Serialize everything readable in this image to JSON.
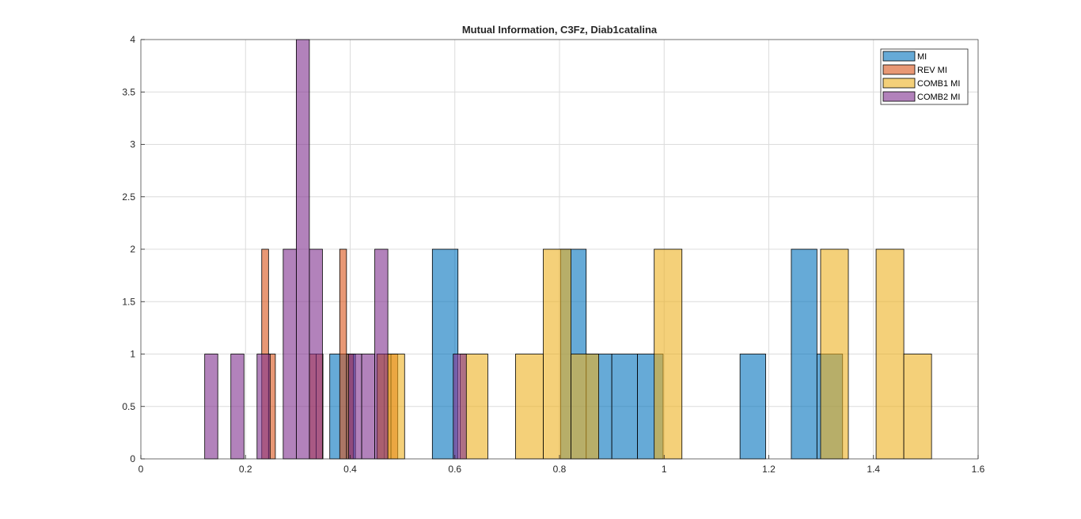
{
  "chart_data": {
    "type": "histogram",
    "title": "Mutual Information, C3Fz, Diab1catalina",
    "xlabel": "",
    "ylabel": "",
    "xlim": [
      0,
      1.6
    ],
    "ylim": [
      0,
      4
    ],
    "xticks": [
      "0",
      "0.2",
      "0.4",
      "0.6",
      "0.8",
      "1",
      "1.2",
      "1.4",
      "1.6"
    ],
    "yticks": [
      "0",
      "0.5",
      "1",
      "1.5",
      "2",
      "2.5",
      "3",
      "3.5",
      "4"
    ],
    "grid": true,
    "legend_position": "top-right",
    "series": [
      {
        "name": "MI",
        "color": "#0072BD",
        "bins": [
          {
            "x0": 0.361,
            "x1": 0.41,
            "count": 1
          },
          {
            "x0": 0.557,
            "x1": 0.606,
            "count": 2
          },
          {
            "x0": 0.802,
            "x1": 0.851,
            "count": 2
          },
          {
            "x0": 0.851,
            "x1": 0.9,
            "count": 1
          },
          {
            "x0": 0.9,
            "x1": 0.949,
            "count": 1
          },
          {
            "x0": 0.949,
            "x1": 0.998,
            "count": 1
          },
          {
            "x0": 1.145,
            "x1": 1.194,
            "count": 1
          },
          {
            "x0": 1.243,
            "x1": 1.292,
            "count": 2
          },
          {
            "x0": 1.292,
            "x1": 1.341,
            "count": 1
          }
        ]
      },
      {
        "name": "REV MI",
        "color": "#D95319",
        "bins": [
          {
            "x0": 0.231,
            "x1": 0.244,
            "count": 2
          },
          {
            "x0": 0.244,
            "x1": 0.257,
            "count": 1
          },
          {
            "x0": 0.322,
            "x1": 0.335,
            "count": 1
          },
          {
            "x0": 0.335,
            "x1": 0.348,
            "count": 1
          },
          {
            "x0": 0.38,
            "x1": 0.393,
            "count": 2
          },
          {
            "x0": 0.393,
            "x1": 0.406,
            "count": 1
          },
          {
            "x0": 0.452,
            "x1": 0.465,
            "count": 1
          },
          {
            "x0": 0.465,
            "x1": 0.478,
            "count": 1
          },
          {
            "x0": 0.478,
            "x1": 0.491,
            "count": 1
          }
        ]
      },
      {
        "name": "COMB1 MI",
        "color": "#EDB120",
        "bins": [
          {
            "x0": 0.451,
            "x1": 0.504,
            "count": 1
          },
          {
            "x0": 0.61,
            "x1": 0.663,
            "count": 1
          },
          {
            "x0": 0.716,
            "x1": 0.769,
            "count": 1
          },
          {
            "x0": 0.769,
            "x1": 0.822,
            "count": 2
          },
          {
            "x0": 0.822,
            "x1": 0.875,
            "count": 1
          },
          {
            "x0": 0.981,
            "x1": 1.034,
            "count": 2
          },
          {
            "x0": 1.299,
            "x1": 1.352,
            "count": 2
          },
          {
            "x0": 1.405,
            "x1": 1.458,
            "count": 2
          },
          {
            "x0": 1.458,
            "x1": 1.511,
            "count": 1
          }
        ]
      },
      {
        "name": "COMB2 MI",
        "color": "#7E2F8E",
        "bins": [
          {
            "x0": 0.122,
            "x1": 0.147,
            "count": 1
          },
          {
            "x0": 0.172,
            "x1": 0.197,
            "count": 1
          },
          {
            "x0": 0.222,
            "x1": 0.247,
            "count": 1
          },
          {
            "x0": 0.272,
            "x1": 0.297,
            "count": 2
          },
          {
            "x0": 0.297,
            "x1": 0.322,
            "count": 4
          },
          {
            "x0": 0.322,
            "x1": 0.347,
            "count": 2
          },
          {
            "x0": 0.397,
            "x1": 0.422,
            "count": 1
          },
          {
            "x0": 0.422,
            "x1": 0.447,
            "count": 1
          },
          {
            "x0": 0.447,
            "x1": 0.472,
            "count": 2
          },
          {
            "x0": 0.597,
            "x1": 0.622,
            "count": 1
          }
        ]
      }
    ]
  }
}
